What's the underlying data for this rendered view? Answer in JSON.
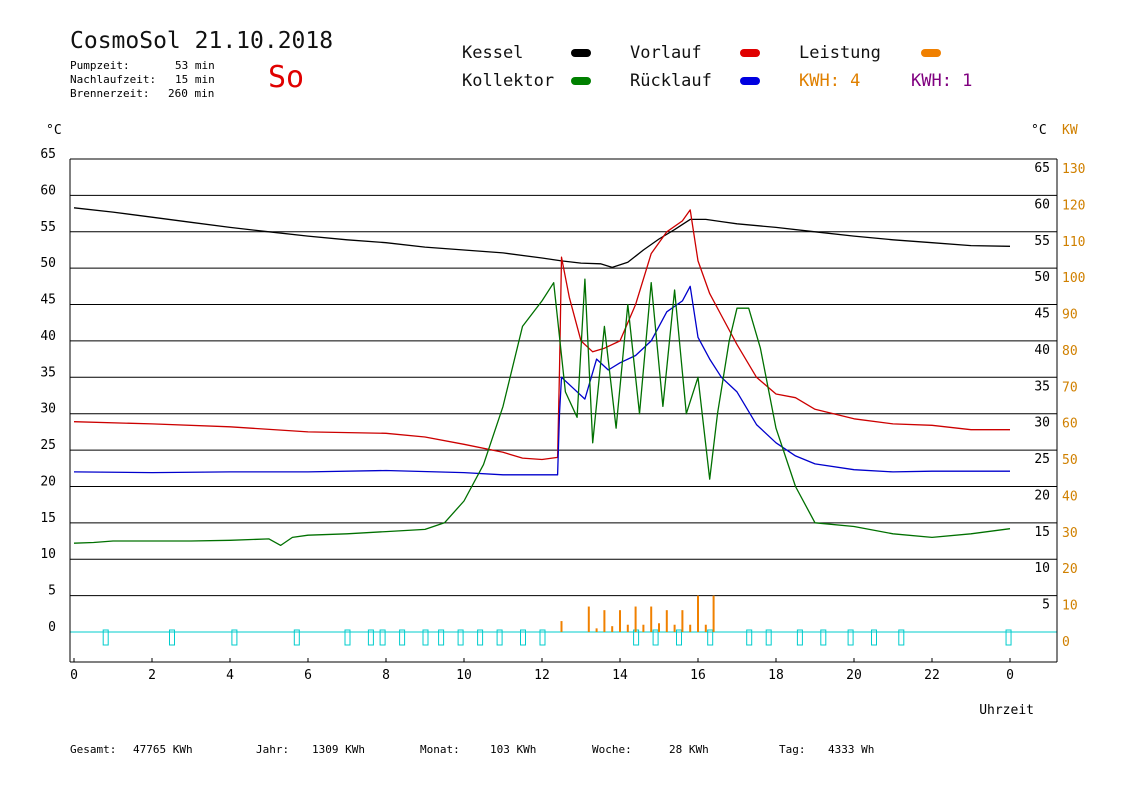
{
  "header": {
    "title": "CosmoSol 21.10.2018",
    "weekday": "So",
    "info": [
      {
        "label": "Pumpzeit:",
        "value": "53 min"
      },
      {
        "label": "Nachlaufzeit:",
        "value": "15 min"
      },
      {
        "label": "Brennerzeit:",
        "value": "260 min"
      }
    ]
  },
  "legend": {
    "items": [
      {
        "label": "Kessel",
        "color": "#000000"
      },
      {
        "label": "Vorlauf",
        "color": "#e00000"
      },
      {
        "label": "Leistung",
        "color": "#f08000"
      },
      {
        "label": "Kollektor",
        "color": "#008000"
      },
      {
        "label": "Rücklauf",
        "color": "#0000e0"
      }
    ],
    "kwh_orange": "KWH: 4",
    "kwh_purple": "KWH: 1",
    "kwh_orange_color": "#e08000",
    "kwh_purple_color": "#800080"
  },
  "footer": [
    {
      "label": "Gesamt:",
      "value": "47765 KWh"
    },
    {
      "label": "Jahr:",
      "value": "1309 KWh"
    },
    {
      "label": "Monat:",
      "value": "103 KWh"
    },
    {
      "label": "Woche:",
      "value": "28 KWh"
    },
    {
      "label": "Tag:",
      "value": "4333 Wh"
    }
  ],
  "chart_data": {
    "type": "line",
    "xlabel": "Uhrzeit",
    "ylabel_left": "°C",
    "ylabel_right": "°C",
    "ylabel_right2": "KW",
    "xlim": [
      0,
      24
    ],
    "ylim": [
      0,
      65
    ],
    "x_ticks": [
      "0",
      "2",
      "4",
      "6",
      "8",
      "10",
      "12",
      "14",
      "16",
      "18",
      "20",
      "22",
      "0"
    ],
    "y_ticks": [
      "0",
      "5",
      "10",
      "15",
      "20",
      "25",
      "30",
      "35",
      "40",
      "45",
      "50",
      "55",
      "60",
      "65"
    ],
    "y_ticks_right": [
      "5",
      "10",
      "15",
      "20",
      "25",
      "30",
      "35",
      "40",
      "45",
      "50",
      "55",
      "60",
      "65"
    ],
    "kw_ticks": [
      "0",
      "10",
      "20",
      "30",
      "40",
      "50",
      "60",
      "70",
      "80",
      "90",
      "100",
      "110",
      "120",
      "130"
    ],
    "grid": "horizontal",
    "series": [
      {
        "name": "Kessel",
        "color": "#000000",
        "x": [
          0,
          1,
          2,
          3,
          4,
          5,
          6,
          7,
          8,
          9,
          10,
          11,
          12,
          12.5,
          13,
          13.5,
          13.8,
          14.2,
          14.6,
          15,
          15.4,
          15.8,
          16.2,
          16.6,
          17,
          18,
          19,
          20,
          21,
          22,
          23,
          24
        ],
        "values": [
          58.3,
          57.7,
          57.0,
          56.3,
          55.6,
          55.0,
          54.4,
          53.9,
          53.5,
          52.9,
          52.5,
          52.1,
          51.4,
          51.0,
          50.7,
          50.6,
          50.1,
          50.8,
          52.5,
          54.0,
          55.3,
          56.7,
          56.7,
          56.4,
          56.1,
          55.6,
          55.0,
          54.4,
          53.9,
          53.5,
          53.1,
          53.0
        ]
      },
      {
        "name": "Vorlauf",
        "color": "#cc0000",
        "x": [
          0,
          2,
          4,
          6,
          8,
          9,
          10,
          11,
          11.5,
          12,
          12.4,
          12.45,
          12.5,
          12.7,
          13,
          13.3,
          13.6,
          14,
          14.4,
          14.8,
          15.2,
          15.6,
          15.8,
          16,
          16.3,
          16.6,
          17,
          17.5,
          18,
          18.5,
          19,
          20,
          21,
          22,
          23,
          24
        ],
        "values": [
          28.9,
          28.6,
          28.2,
          27.5,
          27.3,
          26.8,
          25.8,
          24.7,
          23.9,
          23.7,
          24.0,
          36.0,
          51.5,
          46.0,
          40.0,
          38.5,
          39.0,
          40.0,
          45.0,
          52.0,
          55.0,
          56.5,
          58.0,
          51.0,
          46.5,
          43.5,
          39.5,
          35.0,
          32.7,
          32.2,
          30.6,
          29.3,
          28.6,
          28.4,
          27.8,
          27.8
        ]
      },
      {
        "name": "Rücklauf",
        "color": "#0000cc",
        "x": [
          0,
          2,
          4,
          6,
          8,
          10,
          11,
          12,
          12.4,
          12.45,
          12.5,
          12.8,
          13.1,
          13.4,
          13.7,
          14,
          14.4,
          14.8,
          15.2,
          15.6,
          15.8,
          16,
          16.3,
          16.6,
          17,
          17.5,
          18,
          18.5,
          19,
          20,
          21,
          22,
          23,
          24
        ],
        "values": [
          22.0,
          21.9,
          22.0,
          22.0,
          22.2,
          21.9,
          21.6,
          21.6,
          21.6,
          30.0,
          35.0,
          33.5,
          32.0,
          37.5,
          36.0,
          37.0,
          38.0,
          40.0,
          44.0,
          45.5,
          47.5,
          40.5,
          37.5,
          35.0,
          33.0,
          28.5,
          26.0,
          24.2,
          23.1,
          22.3,
          22.0,
          22.1,
          22.1,
          22.1
        ]
      },
      {
        "name": "Kollektor",
        "color": "#007000",
        "x": [
          0,
          0.5,
          1,
          2,
          3,
          4,
          5,
          5.3,
          5.6,
          6,
          7,
          8,
          9,
          9.5,
          10,
          10.5,
          11,
          11.5,
          12,
          12.3,
          12.6,
          12.9,
          13.1,
          13.3,
          13.6,
          13.9,
          14.2,
          14.5,
          14.8,
          15.1,
          15.4,
          15.7,
          16,
          16.3,
          16.5,
          16.8,
          17,
          17.3,
          17.6,
          18,
          18.5,
          19,
          20,
          21,
          22,
          23,
          24
        ],
        "values": [
          12.2,
          12.3,
          12.5,
          12.5,
          12.5,
          12.6,
          12.8,
          11.9,
          13.0,
          13.3,
          13.5,
          13.8,
          14.1,
          15.0,
          18.0,
          23.0,
          31.0,
          42.0,
          45.5,
          48.0,
          33.0,
          29.5,
          48.5,
          26.0,
          42.0,
          28.0,
          45.0,
          30.0,
          48.0,
          31.0,
          47.0,
          30.0,
          35.0,
          21.0,
          30.0,
          40.0,
          44.5,
          44.5,
          39.0,
          28.0,
          20.0,
          15.0,
          14.5,
          13.5,
          13.0,
          13.5,
          14.2
        ]
      },
      {
        "name": "Leistung",
        "color": "#f08000",
        "x": [
          12.4,
          12.5,
          13.0,
          13.2,
          13.4,
          13.6,
          13.8,
          14.0,
          14.2,
          14.4,
          14.6,
          14.8,
          15.0,
          15.2,
          15.4,
          15.6,
          15.8,
          16.0,
          16.2,
          16.4,
          16.6
        ],
        "values": [
          0,
          1.5,
          0,
          3.5,
          0.5,
          3.0,
          0.8,
          3.0,
          1.0,
          3.5,
          1.0,
          3.5,
          1.2,
          3.0,
          1.0,
          3.0,
          1.0,
          5.0,
          1.0,
          5.0,
          0
        ]
      }
    ]
  }
}
